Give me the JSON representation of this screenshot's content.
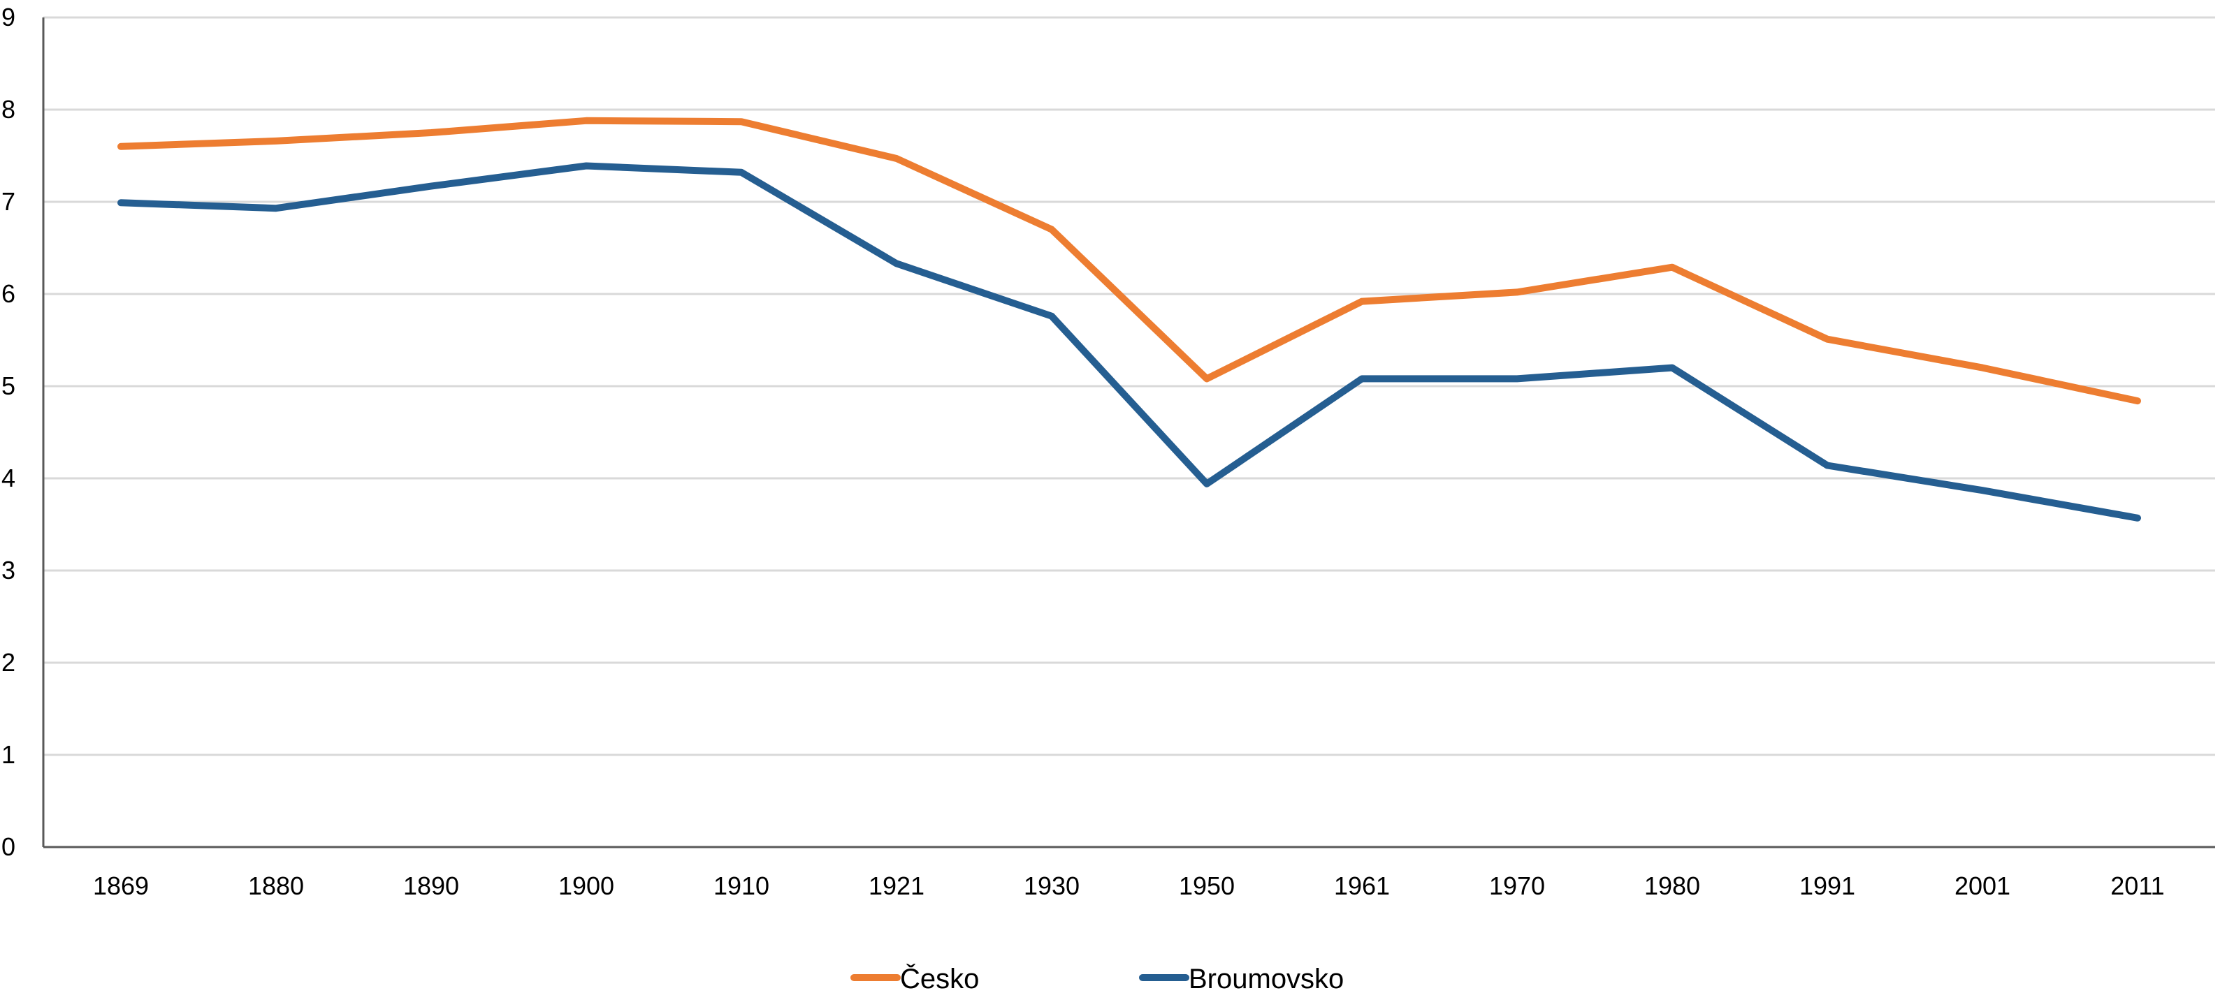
{
  "chart_data": {
    "type": "line",
    "title": "",
    "xlabel": "",
    "ylabel": "",
    "categories": [
      "1869",
      "1880",
      "1890",
      "1900",
      "1910",
      "1921",
      "1930",
      "1950",
      "1961",
      "1970",
      "1980",
      "1991",
      "2001",
      "2011"
    ],
    "ylim": [
      0,
      9
    ],
    "yticks": [
      "0",
      "1",
      "2",
      "3",
      "4",
      "5",
      "6",
      "7",
      "8",
      "9"
    ],
    "grid": true,
    "legend_position": "bottom",
    "series": [
      {
        "name": "Česko",
        "color": "#ED7D31",
        "values": [
          7.6,
          7.66,
          7.75,
          7.88,
          7.87,
          7.47,
          6.7,
          5.08,
          5.92,
          6.02,
          6.29,
          5.51,
          5.2,
          4.84
        ]
      },
      {
        "name": "Broumovsko",
        "color": "#255E91",
        "values": [
          6.99,
          6.93,
          7.17,
          7.39,
          7.32,
          6.33,
          5.76,
          3.94,
          5.08,
          5.08,
          5.2,
          4.14,
          3.87,
          3.57
        ]
      }
    ]
  }
}
